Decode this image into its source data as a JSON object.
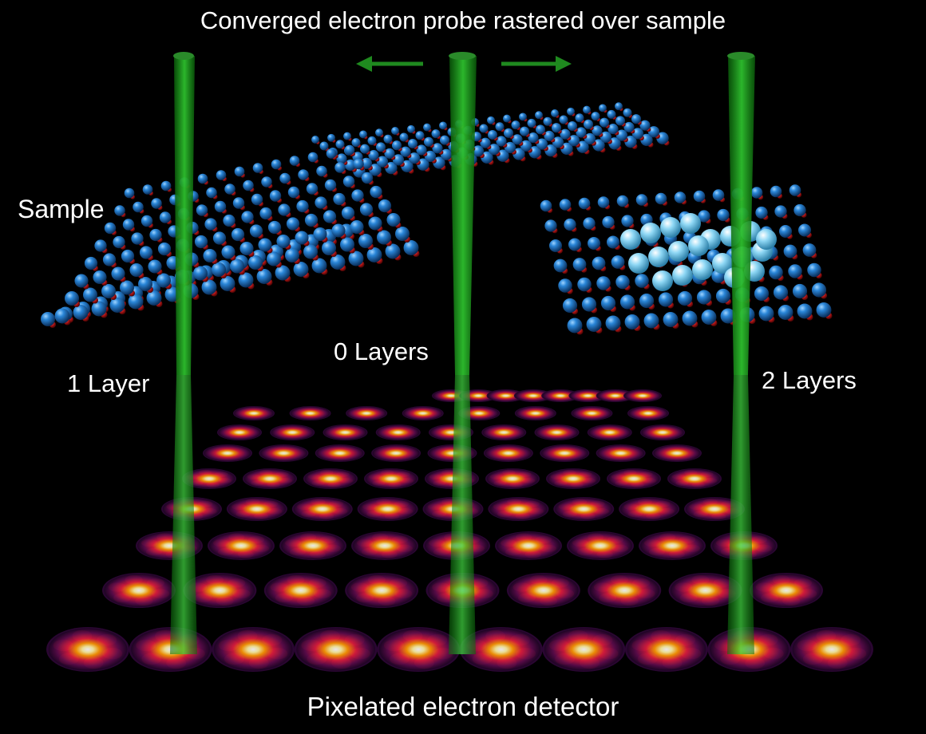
{
  "title": "Converged electron probe rastered over sample",
  "labels": {
    "sample": "Sample",
    "layer_1": "1 Layer",
    "layer_0": "0 Layers",
    "layer_2": "2 Layers"
  },
  "detector_label": "Pixelated electron detector",
  "colors": {
    "background": "#000000",
    "beam": "#1ea01e",
    "arrow": "#1f8a1f",
    "atom_large": "#1e6fc0",
    "atom_small": "#c41818",
    "atom_highlight": "#8fd8f5",
    "pattern_hot": "#ffffff",
    "pattern_warm": "#ff9a00",
    "pattern_mid": "#d0183a",
    "pattern_outer": "#3a0838"
  },
  "icons": [
    "left-arrow-icon",
    "right-arrow-icon"
  ]
}
